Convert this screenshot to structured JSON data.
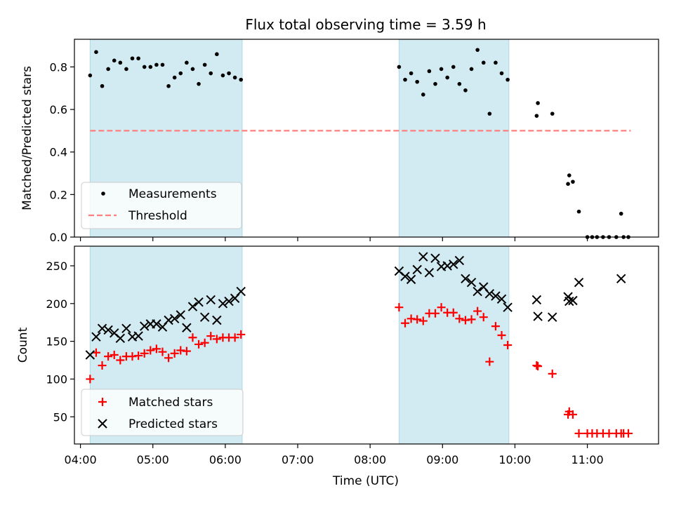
{
  "chart_data": {
    "type": "scatter",
    "title": "Flux total observing time = 3.59 h",
    "xlabel": "Time (UTC)",
    "x_ticks": [
      "04:00",
      "05:00",
      "06:00",
      "07:00",
      "08:00",
      "09:00",
      "10:00",
      "11:00"
    ],
    "x_range": [
      "03:55",
      "11:59"
    ],
    "shaded_windows": [
      [
        "04:08",
        "06:14"
      ],
      [
        "08:24",
        "09:55"
      ]
    ],
    "colors": {
      "shade": "#add8e6",
      "measurements": "#000000",
      "threshold": "#ff7f7f",
      "matched": "#ff0000",
      "predicted": "#000000"
    },
    "panels": [
      {
        "ylabel": "Matched/Predicted stars",
        "ylim": [
          0,
          0.93
        ],
        "y_ticks": [
          "0.0",
          "0.2",
          "0.4",
          "0.6",
          "0.8"
        ],
        "legend_position": "lower-left",
        "threshold": {
          "name": "Threshold",
          "value": 0.5,
          "x_range": [
            "04:08",
            "11:36"
          ]
        },
        "series": [
          {
            "name": "Measurements",
            "marker": "dot",
            "x": [
              "04:08",
              "04:13",
              "04:18",
              "04:23",
              "04:28",
              "04:33",
              "04:38",
              "04:43",
              "04:48",
              "04:53",
              "04:58",
              "05:03",
              "05:08",
              "05:13",
              "05:18",
              "05:23",
              "05:28",
              "05:33",
              "05:38",
              "05:43",
              "05:48",
              "05:53",
              "05:58",
              "06:03",
              "06:08",
              "06:13",
              "08:24",
              "08:29",
              "08:34",
              "08:39",
              "08:44",
              "08:49",
              "08:54",
              "08:59",
              "09:04",
              "09:09",
              "09:14",
              "09:19",
              "09:24",
              "09:29",
              "09:34",
              "09:39",
              "09:44",
              "09:49",
              "09:54",
              "10:18",
              "10:19",
              "10:31",
              "10:44",
              "10:45",
              "10:48",
              "10:53",
              "11:00",
              "11:04",
              "11:08",
              "11:13",
              "11:18",
              "11:24",
              "11:28",
              "11:30",
              "11:34"
            ],
            "y": [
              0.76,
              0.87,
              0.71,
              0.79,
              0.83,
              0.82,
              0.79,
              0.84,
              0.84,
              0.8,
              0.8,
              0.81,
              0.81,
              0.71,
              0.75,
              0.77,
              0.82,
              0.79,
              0.72,
              0.81,
              0.77,
              0.86,
              0.76,
              0.77,
              0.75,
              0.74,
              0.8,
              0.74,
              0.77,
              0.73,
              0.67,
              0.78,
              0.72,
              0.79,
              0.75,
              0.8,
              0.72,
              0.69,
              0.79,
              0.88,
              0.82,
              0.58,
              0.82,
              0.77,
              0.74,
              0.57,
              0.63,
              0.58,
              0.25,
              0.29,
              0.26,
              0.12,
              0.0,
              0.0,
              0.0,
              0.0,
              0.0,
              0.0,
              0.11,
              0.0,
              0.0
            ]
          }
        ]
      },
      {
        "ylabel": "Count",
        "ylim": [
          14,
          276
        ],
        "y_ticks": [
          "50",
          "100",
          "150",
          "200",
          "250"
        ],
        "legend_position": "lower-left",
        "series": [
          {
            "name": "Matched stars",
            "marker": "plus",
            "x": [
              "04:08",
              "04:13",
              "04:18",
              "04:23",
              "04:28",
              "04:33",
              "04:38",
              "04:43",
              "04:48",
              "04:53",
              "04:58",
              "05:03",
              "05:08",
              "05:13",
              "05:18",
              "05:23",
              "05:28",
              "05:33",
              "05:38",
              "05:43",
              "05:48",
              "05:53",
              "05:58",
              "06:03",
              "06:08",
              "06:13",
              "08:24",
              "08:29",
              "08:34",
              "08:39",
              "08:44",
              "08:49",
              "08:54",
              "08:59",
              "09:04",
              "09:09",
              "09:14",
              "09:19",
              "09:24",
              "09:29",
              "09:34",
              "09:39",
              "09:44",
              "09:49",
              "09:54",
              "10:18",
              "10:19",
              "10:31",
              "10:44",
              "10:45",
              "10:48",
              "10:53",
              "11:00",
              "11:04",
              "11:08",
              "11:13",
              "11:18",
              "11:24",
              "11:28",
              "11:30",
              "11:34"
            ],
            "y": [
              100,
              135,
              118,
              130,
              132,
              125,
              130,
              130,
              131,
              134,
              138,
              140,
              136,
              128,
              134,
              138,
              137,
              155,
              146,
              148,
              157,
              153,
              155,
              155,
              155,
              159,
              195,
              174,
              180,
              179,
              177,
              187,
              187,
              195,
              188,
              188,
              180,
              178,
              179,
              190,
              182,
              123,
              170,
              158,
              145,
              118,
              117,
              107,
              53,
              57,
              53,
              28,
              28,
              28,
              28,
              28,
              28,
              28,
              28,
              28,
              28
            ]
          },
          {
            "name": "Predicted stars",
            "marker": "x",
            "x": [
              "04:08",
              "04:13",
              "04:18",
              "04:23",
              "04:28",
              "04:33",
              "04:38",
              "04:43",
              "04:48",
              "04:53",
              "04:58",
              "05:03",
              "05:08",
              "05:13",
              "05:18",
              "05:23",
              "05:28",
              "05:33",
              "05:38",
              "05:43",
              "05:48",
              "05:53",
              "05:58",
              "06:03",
              "06:08",
              "06:13",
              "08:24",
              "08:29",
              "08:34",
              "08:39",
              "08:44",
              "08:49",
              "08:54",
              "08:59",
              "09:04",
              "09:09",
              "09:14",
              "09:19",
              "09:24",
              "09:29",
              "09:34",
              "09:39",
              "09:44",
              "09:49",
              "09:54",
              "10:18",
              "10:19",
              "10:31",
              "10:44",
              "10:45",
              "10:48",
              "10:53",
              "11:28"
            ],
            "y": [
              132,
              156,
              167,
              165,
              161,
              154,
              167,
              156,
              157,
              170,
              173,
              173,
              169,
              178,
              180,
              185,
              168,
              196,
              202,
              182,
              205,
              178,
              200,
              203,
              207,
              216,
              243,
              236,
              232,
              245,
              262,
              241,
              260,
              249,
              250,
              252,
              257,
              233,
              228,
              216,
              222,
              213,
              210,
              206,
              195,
              205,
              183,
              182,
              209,
              203,
              204,
              228,
              233
            ]
          }
        ]
      }
    ]
  }
}
